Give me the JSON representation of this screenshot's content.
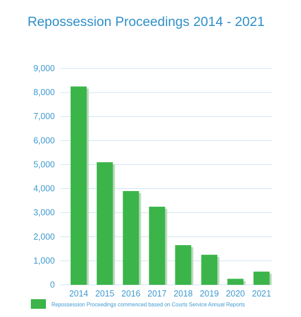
{
  "chart_data": {
    "type": "bar",
    "title": "Repossession Proceedings 2014 - 2021",
    "categories": [
      "2014",
      "2015",
      "2016",
      "2017",
      "2018",
      "2019",
      "2020",
      "2021"
    ],
    "series": [
      {
        "name": "Repossession Proceedings commenced based on Courts Service Annual Reports",
        "values": [
          8250,
          5100,
          3900,
          3250,
          1650,
          1250,
          250,
          550
        ]
      }
    ],
    "ytick_labels": [
      "0",
      "1,000",
      "2,000",
      "3,000",
      "4,000",
      "5,000",
      "6,000",
      "7,000",
      "8,000",
      "9,000"
    ],
    "ylim": [
      0,
      9000
    ],
    "grid": true,
    "legend_position": "bottom",
    "colors": {
      "bar": "#3bb54a",
      "bar_shadow": "#b9d9bd",
      "title": "#2f8fc9",
      "axis_text": "#3f9ad0",
      "grid": "#cfe6f4"
    }
  }
}
